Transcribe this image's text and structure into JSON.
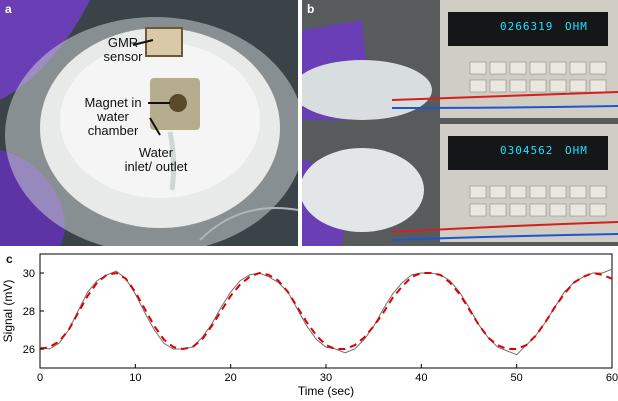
{
  "panels": {
    "a": {
      "label": "a",
      "callouts": [
        "GMR sensor",
        "Magnet in water chamber",
        "Water inlet/ outlet"
      ]
    },
    "b": {
      "label": "b",
      "readings": [
        "0266319",
        "0304562"
      ],
      "unit": "OHM"
    },
    "c": {
      "label": "c"
    }
  },
  "colors": {
    "raw_signal": "#707070",
    "fit_curve": "#e00000",
    "glove": "#6a3fb5",
    "lcd_text": "#1ee0ff"
  },
  "chart_data": {
    "type": "line",
    "xlabel": "Time (sec)",
    "ylabel": "Signal (mV)",
    "xlim": [
      0,
      60
    ],
    "ylim": [
      25,
      31
    ],
    "xticks": [
      0,
      10,
      20,
      30,
      40,
      50,
      60
    ],
    "yticks": [
      26,
      28,
      30
    ],
    "grid": false,
    "series": [
      {
        "style": "raw-noisy",
        "x": [
          0,
          1,
          2,
          3,
          4,
          5,
          6,
          7,
          8,
          9,
          10,
          11,
          12,
          13,
          14,
          15,
          16,
          17,
          18,
          19,
          20,
          21,
          22,
          23,
          24,
          25,
          26,
          27,
          28,
          29,
          30,
          31,
          32,
          33,
          34,
          35,
          36,
          37,
          38,
          39,
          40,
          41,
          42,
          43,
          44,
          45,
          46,
          47,
          48,
          49,
          50,
          51,
          52,
          53,
          54,
          55,
          56,
          57,
          58,
          59,
          60
        ],
        "y": [
          26.1,
          26.0,
          26.3,
          27.0,
          28.0,
          29.0,
          29.6,
          29.9,
          30.1,
          29.7,
          28.9,
          27.9,
          27.0,
          26.3,
          26.0,
          26.0,
          26.1,
          26.6,
          27.3,
          28.2,
          29.0,
          29.6,
          29.9,
          30.0,
          29.8,
          29.5,
          29.0,
          28.1,
          27.2,
          26.5,
          26.1,
          26.0,
          25.8,
          26.0,
          26.5,
          27.2,
          28.1,
          28.9,
          29.5,
          29.9,
          30.0,
          30.0,
          29.9,
          29.6,
          29.0,
          28.2,
          27.3,
          26.6,
          26.1,
          25.9,
          25.7,
          26.2,
          26.7,
          27.4,
          28.2,
          29.0,
          29.5,
          29.8,
          30.0,
          30.0,
          30.2
        ]
      },
      {
        "style": "fit-dashed",
        "x": [
          0,
          1,
          2,
          3,
          4,
          5,
          6,
          7,
          8,
          9,
          10,
          11,
          12,
          13,
          14,
          15,
          16,
          17,
          18,
          19,
          20,
          21,
          22,
          23,
          24,
          25,
          26,
          27,
          28,
          29,
          30,
          31,
          32,
          33,
          34,
          35,
          36,
          37,
          38,
          39,
          40,
          41,
          42,
          43,
          44,
          45,
          46,
          47,
          48,
          49,
          50,
          51,
          52,
          53,
          54,
          55,
          56,
          57,
          58,
          59,
          60
        ],
        "y": [
          26.0,
          26.1,
          26.4,
          27.0,
          27.9,
          28.8,
          29.5,
          29.9,
          30.0,
          29.7,
          29.0,
          28.1,
          27.2,
          26.5,
          26.1,
          26.0,
          26.1,
          26.5,
          27.2,
          28.0,
          28.8,
          29.4,
          29.8,
          30.0,
          29.9,
          29.6,
          29.0,
          28.2,
          27.4,
          26.7,
          26.2,
          26.0,
          26.0,
          26.2,
          26.6,
          27.2,
          27.9,
          28.7,
          29.3,
          29.8,
          30.0,
          30.0,
          29.9,
          29.5,
          28.9,
          28.1,
          27.3,
          26.6,
          26.2,
          26.0,
          26.0,
          26.2,
          26.7,
          27.4,
          28.2,
          28.9,
          29.5,
          29.8,
          30.0,
          29.9,
          29.7
        ]
      }
    ]
  }
}
